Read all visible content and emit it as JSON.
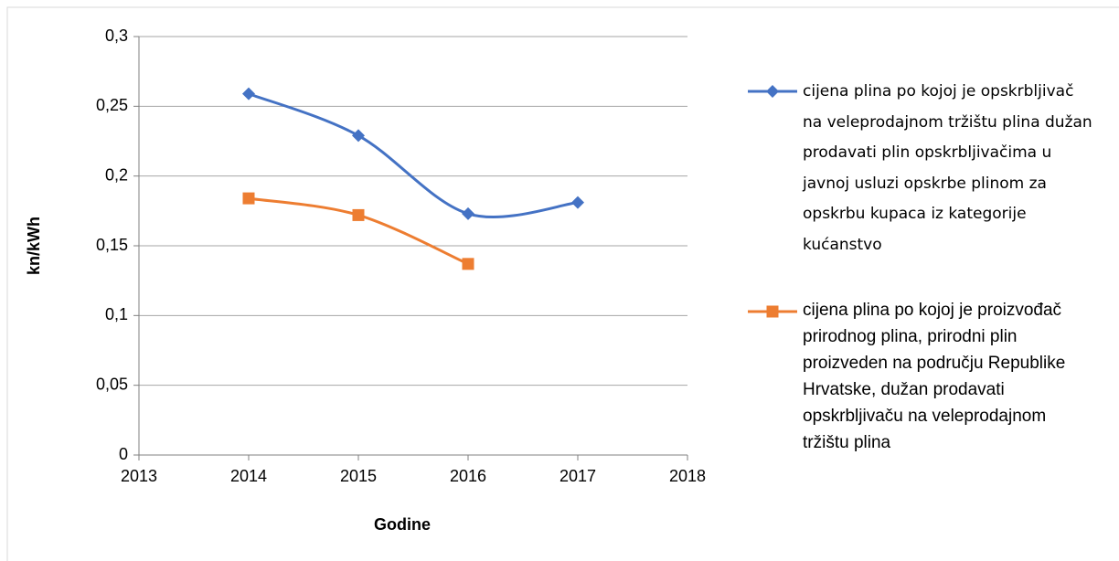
{
  "chart_data": {
    "type": "line",
    "x_label": "Godine",
    "y_label": "kn/kWh",
    "x": [
      2014,
      2015,
      2016,
      2017
    ],
    "series": [
      {
        "name": "cijena plina po kojoj je opskrbljivač na veleprodajnom tržištu plina dužan prodavati plin opskrbljivačima u javnoj usluzi opskrbe plinom za opskrbu kupaca iz kategorije kućanstvo",
        "color": "#4472c4",
        "marker": "diamond",
        "values": [
          0.259,
          0.229,
          0.173,
          0.181
        ]
      },
      {
        "name": "cijena plina po kojoj je proizvođač prirodnog plina, prirodni plin proizveden na području Republike Hrvatske, dužan prodavati opskrbljivaču na veleprodajnom tržištu plina",
        "color": "#ed7d31",
        "marker": "square",
        "values": [
          0.184,
          0.172,
          0.137,
          null
        ]
      }
    ],
    "smooth": true,
    "xlim": [
      2013,
      2018
    ],
    "xticks": [
      2013,
      2014,
      2015,
      2016,
      2017,
      2018
    ],
    "ylim": [
      0,
      0.3
    ],
    "yticks": [
      0,
      {
        "value": 0.05,
        "label": "0,05"
      },
      {
        "value": 0.1,
        "label": "0,1"
      },
      {
        "value": 0.15,
        "label": "0,15"
      },
      {
        "value": 0.2,
        "label": "0,2"
      },
      {
        "value": 0.25,
        "label": "0,25"
      },
      {
        "value": 0.3,
        "label": "0,3"
      }
    ],
    "grid": true,
    "legend": "right"
  }
}
